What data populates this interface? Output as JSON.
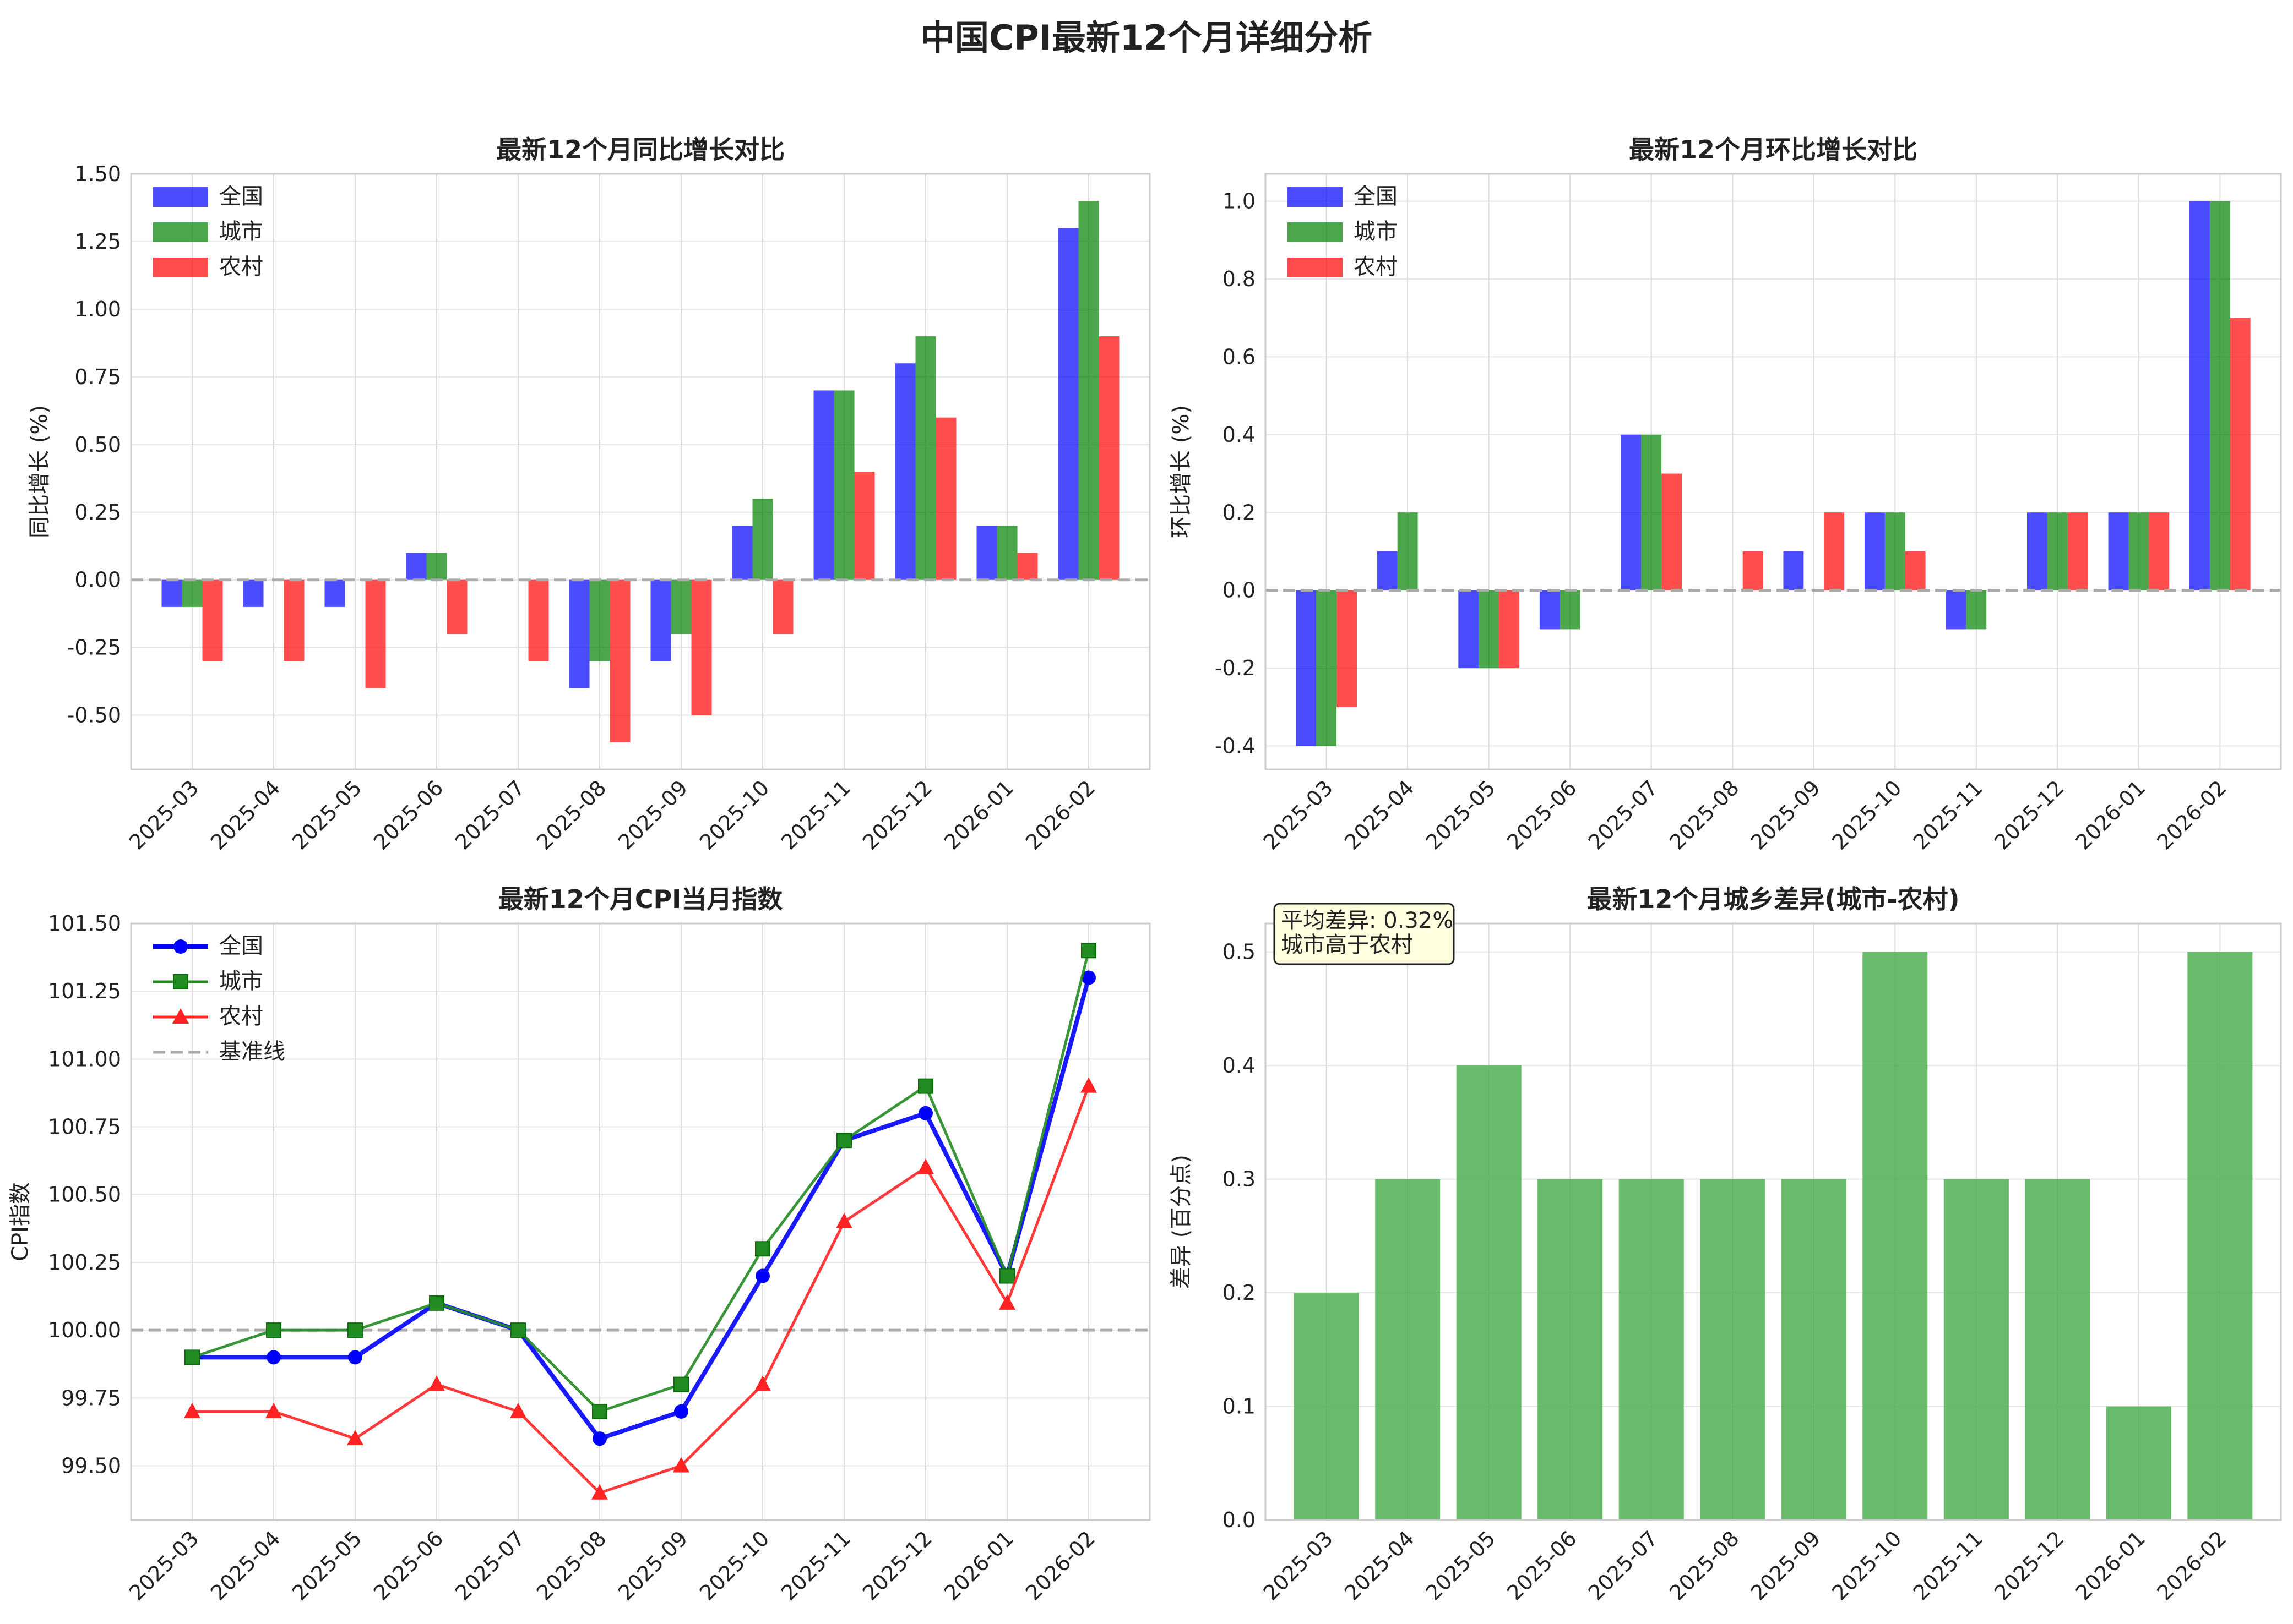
{
  "title": "中国CPI最新12个月详细分析",
  "colors": {
    "national": "#0000ff",
    "urban": "#008000",
    "rural": "#ff0000",
    "baseline": "#aaaaaa"
  },
  "chart_data": [
    {
      "type": "bar",
      "title": "最新12个月同比增长对比",
      "ylabel": "同比增长 (%)",
      "categories": [
        "2025-03",
        "2025-04",
        "2025-05",
        "2025-06",
        "2025-07",
        "2025-08",
        "2025-09",
        "2025-10",
        "2025-11",
        "2025-12",
        "2026-01",
        "2026-02"
      ],
      "ylim": [
        -0.7,
        1.5
      ],
      "yticks": [
        -0.5,
        -0.25,
        0.0,
        0.25,
        0.5,
        0.75,
        1.0,
        1.25,
        1.5
      ],
      "ytick_labels": [
        "-0.50",
        "-0.25",
        "0.00",
        "0.25",
        "0.50",
        "0.75",
        "1.00",
        "1.25",
        "1.50"
      ],
      "legend_position": "top-left",
      "baseline": 0,
      "series": [
        {
          "name": "全国",
          "color": "#0000ff",
          "values": [
            -0.1,
            -0.1,
            -0.1,
            0.1,
            0.0,
            -0.4,
            -0.3,
            0.2,
            0.7,
            0.8,
            0.2,
            1.3
          ]
        },
        {
          "name": "城市",
          "color": "#008000",
          "values": [
            -0.1,
            0.0,
            0.0,
            0.1,
            0.0,
            -0.3,
            -0.2,
            0.3,
            0.7,
            0.9,
            0.2,
            1.4
          ]
        },
        {
          "name": "农村",
          "color": "#ff0000",
          "values": [
            -0.3,
            -0.3,
            -0.4,
            -0.2,
            -0.3,
            -0.6,
            -0.5,
            -0.2,
            0.4,
            0.6,
            0.1,
            0.9
          ]
        }
      ]
    },
    {
      "type": "bar",
      "title": "最新12个月环比增长对比",
      "ylabel": "环比增长 (%)",
      "categories": [
        "2025-03",
        "2025-04",
        "2025-05",
        "2025-06",
        "2025-07",
        "2025-08",
        "2025-09",
        "2025-10",
        "2025-11",
        "2025-12",
        "2026-01",
        "2026-02"
      ],
      "ylim": [
        -0.46,
        1.07
      ],
      "yticks": [
        -0.4,
        -0.2,
        0.0,
        0.2,
        0.4,
        0.6,
        0.8,
        1.0
      ],
      "ytick_labels": [
        "-0.4",
        "-0.2",
        "0.0",
        "0.2",
        "0.4",
        "0.6",
        "0.8",
        "1.0"
      ],
      "legend_position": "top-left",
      "baseline": 0,
      "series": [
        {
          "name": "全国",
          "color": "#0000ff",
          "values": [
            -0.4,
            0.1,
            -0.2,
            -0.1,
            0.4,
            0.0,
            0.1,
            0.2,
            -0.1,
            0.2,
            0.2,
            1.0
          ]
        },
        {
          "name": "城市",
          "color": "#008000",
          "values": [
            -0.4,
            0.2,
            -0.2,
            -0.1,
            0.4,
            0.0,
            0.0,
            0.2,
            -0.1,
            0.2,
            0.2,
            1.0
          ]
        },
        {
          "name": "农村",
          "color": "#ff0000",
          "values": [
            -0.3,
            0.0,
            -0.2,
            0.0,
            0.3,
            0.1,
            0.2,
            0.1,
            0.0,
            0.2,
            0.2,
            0.7
          ]
        }
      ]
    },
    {
      "type": "line",
      "title": "最新12个月CPI当月指数",
      "ylabel": "CPI指数",
      "categories": [
        "2025-03",
        "2025-04",
        "2025-05",
        "2025-06",
        "2025-07",
        "2025-08",
        "2025-09",
        "2025-10",
        "2025-11",
        "2025-12",
        "2026-01",
        "2026-02"
      ],
      "ylim": [
        99.3,
        101.5
      ],
      "yticks": [
        99.5,
        99.75,
        100.0,
        100.25,
        100.5,
        100.75,
        101.0,
        101.25,
        101.5
      ],
      "ytick_labels": [
        "99.50",
        "99.75",
        "100.00",
        "100.25",
        "100.50",
        "100.75",
        "101.00",
        "101.25",
        "101.50"
      ],
      "legend_position": "top-left",
      "baseline": 100,
      "baseline_name": "基准线",
      "series": [
        {
          "name": "全国",
          "color": "#0000ff",
          "marker": "circle",
          "values": [
            99.9,
            99.9,
            99.9,
            100.1,
            100.0,
            99.6,
            99.7,
            100.2,
            100.7,
            100.8,
            100.2,
            101.3
          ]
        },
        {
          "name": "城市",
          "color": "#228b22",
          "marker": "square",
          "values": [
            99.9,
            100.0,
            100.0,
            100.1,
            100.0,
            99.7,
            99.8,
            100.3,
            100.7,
            100.9,
            100.2,
            101.4
          ]
        },
        {
          "name": "农村",
          "color": "#ff2222",
          "marker": "triangle",
          "values": [
            99.7,
            99.7,
            99.6,
            99.8,
            99.7,
            99.4,
            99.5,
            99.8,
            100.4,
            100.6,
            100.1,
            100.9
          ]
        }
      ]
    },
    {
      "type": "bar",
      "title": "最新12个月城乡差异(城市-农村)",
      "ylabel": "差异 (百分点)",
      "categories": [
        "2025-03",
        "2025-04",
        "2025-05",
        "2025-06",
        "2025-07",
        "2025-08",
        "2025-09",
        "2025-10",
        "2025-11",
        "2025-12",
        "2026-01",
        "2026-02"
      ],
      "ylim": [
        0,
        0.525
      ],
      "yticks": [
        0.0,
        0.1,
        0.2,
        0.3,
        0.4,
        0.5
      ],
      "ytick_labels": [
        "0.0",
        "0.1",
        "0.2",
        "0.3",
        "0.4",
        "0.5"
      ],
      "series": [
        {
          "name": "",
          "color": "#4caf50",
          "values": [
            0.2,
            0.3,
            0.4,
            0.3,
            0.3,
            0.3,
            0.3,
            0.5,
            0.3,
            0.3,
            0.1,
            0.5
          ]
        }
      ],
      "annotation": [
        "平均差异: 0.32%",
        "城市高于农村"
      ]
    }
  ]
}
